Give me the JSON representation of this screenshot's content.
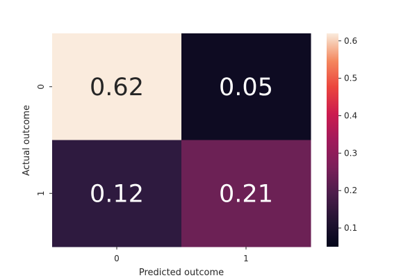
{
  "chart_data": {
    "type": "heatmap",
    "title": "",
    "xlabel": "Predicted outcome",
    "ylabel": "Actual outcome",
    "x_categories": [
      "0",
      "1"
    ],
    "y_categories": [
      "0",
      "1"
    ],
    "values": [
      [
        0.62,
        0.05
      ],
      [
        0.12,
        0.21
      ]
    ],
    "annotations": [
      [
        "0.62",
        "0.05"
      ],
      [
        "0.12",
        "0.21"
      ]
    ],
    "colorbar": {
      "range": [
        0.05,
        0.62
      ],
      "ticks": [
        0.1,
        0.2,
        0.3,
        0.4,
        0.5,
        0.6
      ],
      "tick_labels": [
        "0.1",
        "0.2",
        "0.3",
        "0.4",
        "0.5",
        "0.6"
      ],
      "colormap": "rocket",
      "position": "right"
    },
    "cell_colors": [
      [
        "#FAEBDD",
        "#0E0B22"
      ],
      [
        "#2E1A3F",
        "#6C2155"
      ]
    ],
    "annotation_colors": [
      [
        "#262626",
        "#FFFFFF"
      ],
      [
        "#FFFFFF",
        "#FFFFFF"
      ]
    ]
  }
}
